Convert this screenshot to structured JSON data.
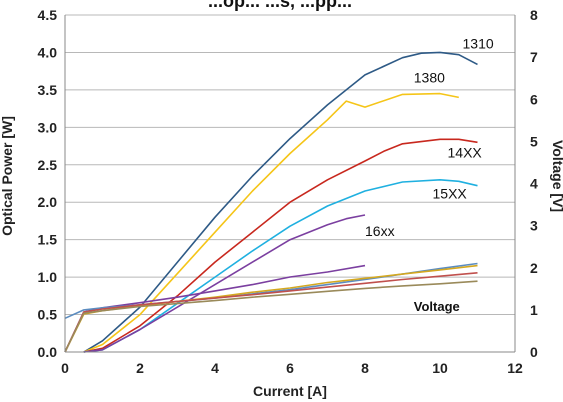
{
  "chart_data": {
    "type": "line",
    "title": "...op... ...s, ...pp...",
    "xlabel": "Current [A]",
    "ylabel": "Optical Power [W]",
    "y2label": "Voltage [V]",
    "xlim": [
      0,
      12
    ],
    "ylim": [
      0,
      4.5
    ],
    "y2lim": [
      0,
      8
    ],
    "xticks": [
      "0",
      "2",
      "4",
      "6",
      "8",
      "10",
      "12"
    ],
    "yticks": [
      "0.0",
      "0.5",
      "1.0",
      "1.5",
      "2.0",
      "2.5",
      "3.0",
      "3.5",
      "4.0",
      "4.5"
    ],
    "y2ticks": [
      "0",
      "1",
      "2",
      "3",
      "4",
      "5",
      "6",
      "7",
      "8"
    ],
    "grid": true,
    "series": [
      {
        "name": "1310",
        "axis": "left",
        "color": "#2e5a86",
        "x": [
          0.5,
          1,
          2,
          3,
          4,
          5,
          6,
          7,
          8,
          9,
          9.5,
          10,
          10.5,
          11
        ],
        "y": [
          0.0,
          0.15,
          0.6,
          1.2,
          1.8,
          2.35,
          2.85,
          3.3,
          3.7,
          3.93,
          3.99,
          4.0,
          3.97,
          3.84
        ]
      },
      {
        "name": "1380",
        "axis": "left",
        "color": "#f5c518",
        "x": [
          0.5,
          1,
          2,
          3,
          4,
          5,
          6,
          7,
          7.5,
          8,
          9,
          10,
          10.5
        ],
        "y": [
          0.0,
          0.1,
          0.5,
          1.05,
          1.6,
          2.15,
          2.65,
          3.1,
          3.35,
          3.27,
          3.44,
          3.45,
          3.4
        ]
      },
      {
        "name": "14XX",
        "axis": "left",
        "color": "#c8281e",
        "x": [
          0.5,
          1,
          2,
          3,
          4,
          5,
          6,
          7,
          8,
          8.5,
          9,
          10,
          10.5,
          11
        ],
        "y": [
          0.0,
          0.05,
          0.35,
          0.75,
          1.2,
          1.6,
          2.0,
          2.3,
          2.55,
          2.68,
          2.78,
          2.84,
          2.84,
          2.8
        ]
      },
      {
        "name": "15XX",
        "axis": "left",
        "color": "#1fb0e0",
        "x": [
          0.5,
          1,
          2,
          3,
          4,
          5,
          6,
          7,
          8,
          9,
          10,
          10.5,
          11
        ],
        "y": [
          0.0,
          0.03,
          0.3,
          0.65,
          1.0,
          1.35,
          1.68,
          1.95,
          2.15,
          2.27,
          2.3,
          2.28,
          2.22
        ]
      },
      {
        "name": "16xx",
        "axis": "left",
        "color": "#7b3fa0",
        "x": [
          0.5,
          1,
          2,
          3,
          4,
          5,
          6,
          7,
          7.5,
          8
        ],
        "y": [
          0.0,
          0.03,
          0.3,
          0.6,
          0.9,
          1.2,
          1.5,
          1.7,
          1.78,
          1.83
        ]
      },
      {
        "name": "",
        "axis": "right",
        "color": "#7b3fa0",
        "x": [
          0,
          0.5,
          1,
          2,
          3,
          4,
          5,
          6,
          7,
          8
        ],
        "y": [
          0.0,
          0.95,
          1.05,
          1.17,
          1.3,
          1.45,
          1.6,
          1.78,
          1.9,
          2.05
        ]
      },
      {
        "name": "",
        "axis": "right",
        "color": "#5b8cc0",
        "x": [
          0,
          0.5,
          1,
          2,
          3,
          4,
          5,
          6,
          7,
          8,
          9,
          10,
          11
        ],
        "y": [
          0.8,
          1.0,
          1.05,
          1.12,
          1.2,
          1.28,
          1.38,
          1.48,
          1.6,
          1.72,
          1.85,
          1.98,
          2.1
        ]
      },
      {
        "name": "",
        "axis": "right",
        "color": "#d4a820",
        "x": [
          0,
          0.5,
          1,
          2,
          3,
          4,
          5,
          6,
          7,
          8,
          9,
          10,
          11
        ],
        "y": [
          0.0,
          0.9,
          0.98,
          1.1,
          1.2,
          1.3,
          1.42,
          1.52,
          1.65,
          1.75,
          1.85,
          1.95,
          2.05
        ]
      },
      {
        "name": "",
        "axis": "right",
        "color": "#c0504d",
        "x": [
          0,
          0.5,
          1,
          2,
          3,
          4,
          5,
          6,
          7,
          8,
          9,
          10,
          11
        ],
        "y": [
          0.0,
          0.95,
          1.02,
          1.12,
          1.2,
          1.28,
          1.36,
          1.45,
          1.54,
          1.63,
          1.72,
          1.8,
          1.88
        ]
      },
      {
        "name": "",
        "axis": "right",
        "color": "#9a8a5a",
        "x": [
          0,
          0.5,
          1,
          2,
          3,
          4,
          5,
          6,
          7,
          8,
          9,
          10,
          11
        ],
        "y": [
          0.0,
          0.92,
          0.98,
          1.08,
          1.15,
          1.22,
          1.3,
          1.37,
          1.44,
          1.51,
          1.57,
          1.62,
          1.68
        ]
      }
    ],
    "annotations": [
      {
        "text": "1310",
        "x": 10.6,
        "y": 4.05,
        "axis": "left",
        "style": "normal"
      },
      {
        "text": "1380",
        "x": 9.3,
        "y": 3.6,
        "axis": "left",
        "style": "normal"
      },
      {
        "text": "14XX",
        "x": 10.2,
        "y": 2.6,
        "axis": "left",
        "style": "normal"
      },
      {
        "text": "15XX",
        "x": 9.8,
        "y": 2.05,
        "axis": "left",
        "style": "normal"
      },
      {
        "text": "16xx",
        "x": 8.0,
        "y": 1.55,
        "axis": "left",
        "style": "normal"
      },
      {
        "text": "Voltage",
        "x": 9.3,
        "y": 0.55,
        "axis": "left",
        "style": "bold"
      }
    ]
  }
}
